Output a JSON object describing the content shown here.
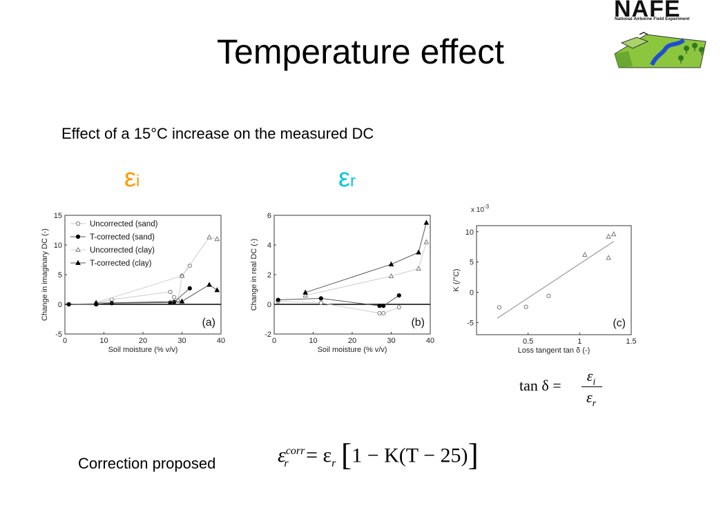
{
  "slide": {
    "title": "Temperature effect",
    "subtitle": "Effect of a 15°C increase on the measured DC",
    "eps_i": {
      "symbol": "ε",
      "sub": "i",
      "color": "#ff9900"
    },
    "eps_r": {
      "symbol": "ε",
      "sub": "r",
      "color": "#00c8dc"
    },
    "logo": {
      "word": "NAFE",
      "text": "National Airborne Field Experiment"
    },
    "formula_tan": {
      "lhs": "tan δ =",
      "num": "ε",
      "num_sub": "i",
      "den": "ε",
      "den_sub": "r"
    },
    "correction_label": "Correction proposed",
    "formula_corr": {
      "eps": "ε",
      "sub": "r",
      "sup": "corr",
      "rhs": "= ε",
      "rhs_sub": "r",
      "bracket": "1 − K(T − 25)"
    }
  },
  "chart_data": [
    {
      "type": "scatter",
      "panel_label": "(a)",
      "xlabel": "Soil moisture (% v/v)",
      "ylabel": "Change in imaginary DC (-)",
      "xlim": [
        0,
        40
      ],
      "ylim": [
        -5,
        15
      ],
      "xticks": [
        0,
        10,
        20,
        30,
        40
      ],
      "yticks": [
        -5,
        0,
        5,
        10,
        15
      ],
      "legend_position": "top-left",
      "series": [
        {
          "name": "Uncorrected (sand)",
          "marker": "circle-open",
          "line": "#cccccc",
          "x": [
            1,
            8,
            12,
            27,
            28,
            29,
            30,
            32
          ],
          "y": [
            0,
            0.2,
            0.8,
            2.1,
            1.2,
            0.6,
            4.8,
            6.5
          ]
        },
        {
          "name": "T-corrected (sand)",
          "marker": "circle-filled",
          "line": "#555555",
          "x": [
            1,
            8,
            12,
            27,
            28,
            32
          ],
          "y": [
            0,
            0,
            0.2,
            0.3,
            0.4,
            2.7
          ]
        },
        {
          "name": "Uncorrected (clay)",
          "marker": "triangle-open",
          "line": "#cccccc",
          "x": [
            8,
            30,
            37,
            39
          ],
          "y": [
            0.3,
            4.8,
            11.3,
            11.0
          ]
        },
        {
          "name": "T-corrected (clay)",
          "marker": "triangle-filled",
          "line": "#555555",
          "x": [
            8,
            30,
            37,
            39
          ],
          "y": [
            0.2,
            0.5,
            3.3,
            2.4
          ]
        }
      ]
    },
    {
      "type": "scatter",
      "panel_label": "(b)",
      "xlabel": "Soil moisture (% v/v)",
      "ylabel": "Change in real DC (-)",
      "xlim": [
        0,
        40
      ],
      "ylim": [
        -2,
        6
      ],
      "xticks": [
        0,
        10,
        20,
        30,
        40
      ],
      "yticks": [
        -2,
        0,
        2,
        4,
        6
      ],
      "series": [
        {
          "marker": "circle-open",
          "line": "#cccccc",
          "x": [
            1,
            12,
            27,
            28,
            32
          ],
          "y": [
            0.2,
            0.1,
            -0.6,
            -0.6,
            -0.2
          ]
        },
        {
          "marker": "circle-filled",
          "line": "#555555",
          "x": [
            1,
            12,
            27,
            28,
            32
          ],
          "y": [
            0.3,
            0.4,
            -0.1,
            -0.1,
            0.6
          ]
        },
        {
          "marker": "triangle-open",
          "line": "#cccccc",
          "x": [
            8,
            30,
            37,
            39
          ],
          "y": [
            0.6,
            1.9,
            2.4,
            4.2
          ]
        },
        {
          "marker": "triangle-filled",
          "line": "#555555",
          "x": [
            8,
            30,
            37,
            39
          ],
          "y": [
            0.8,
            2.7,
            3.5,
            5.5
          ]
        }
      ]
    },
    {
      "type": "scatter",
      "panel_label": "(c)",
      "xlabel": "Loss tangent tan δ (-)",
      "ylabel": "K (/°C)",
      "multiplier": "x 10",
      "multiplier_exp": "-3",
      "xlim": [
        0,
        1.5
      ],
      "ylim": [
        -7,
        11
      ],
      "xticks": [
        0.5,
        1,
        1.5
      ],
      "xtick_labels": [
        "0.5",
        "1",
        "1.5"
      ],
      "yticks": [
        -5,
        0,
        5,
        10
      ],
      "series": [
        {
          "marker": "circle-open",
          "x": [
            0.22,
            0.48,
            0.7
          ],
          "y": [
            -2.5,
            -2.4,
            -0.6
          ]
        },
        {
          "marker": "triangle-open",
          "x": [
            1.05,
            1.28,
            1.28,
            1.33
          ],
          "y": [
            6.2,
            5.7,
            9.2,
            9.6
          ]
        }
      ],
      "fit_line": {
        "x": [
          0.2,
          1.33
        ],
        "y": [
          -4.3,
          8.4
        ]
      }
    }
  ]
}
